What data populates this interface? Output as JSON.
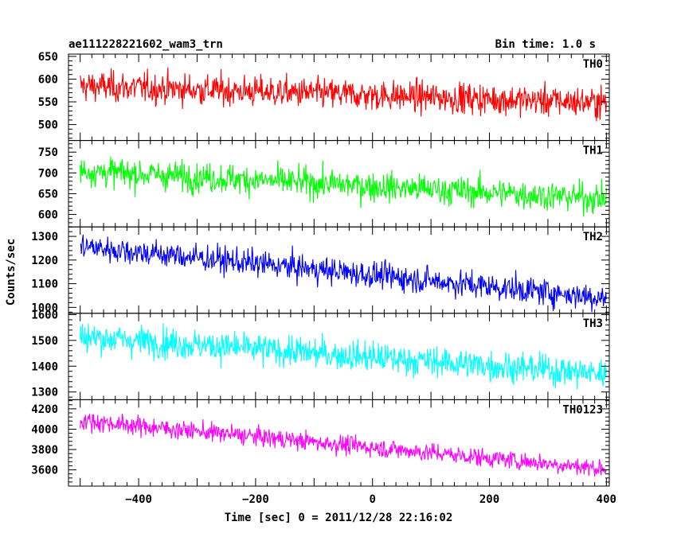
{
  "chart_data": {
    "type": "line",
    "title": "ae111228221602_wam3_trn",
    "subtitle": "Bin time: 1.0 s",
    "xlabel": "Time [sec] 0 = 2011/12/28 22:16:02",
    "ylabel": "Counts/sec",
    "xlim": [
      -520,
      405
    ],
    "x_ticks": [
      -400,
      -200,
      0,
      200,
      400
    ],
    "x_tick_labels": [
      "−400",
      "−200",
      "0",
      "200",
      "400"
    ],
    "x_start": -500,
    "x_end": 400,
    "bin_time": 1.0,
    "grid": false,
    "panels": [
      {
        "name": "TH0",
        "color": "#ff0000",
        "ylim": [
          465,
          655
        ],
        "y_ticks": [
          500,
          550,
          600,
          650
        ],
        "y_tick_labels": [
          "500",
          "550",
          "600",
          "650"
        ],
        "trend_start": 585,
        "trend_end": 548,
        "noise": 24,
        "clip": [
          470,
          652
        ]
      },
      {
        "name": "TH1",
        "color": "#00ff00",
        "ylim": [
          570,
          778
        ],
        "y_ticks": [
          600,
          650,
          700,
          750
        ],
        "y_tick_labels": [
          "600",
          "650",
          "700",
          "750"
        ],
        "trend_start": 705,
        "trend_end": 638,
        "noise": 25,
        "clip": [
          575,
          776
        ]
      },
      {
        "name": "TH2",
        "color": "#0000ff",
        "ylim": [
          975,
          1340
        ],
        "y_ticks": [
          1000,
          1100,
          1200,
          1300
        ],
        "y_tick_labels": [
          "1000",
          "1100",
          "1200",
          "1300"
        ],
        "trend_start": 1258,
        "trend_end": 1040,
        "noise": 40,
        "clip": [
          978,
          1338
        ]
      },
      {
        "name": "TH3",
        "color": "#00ffff",
        "ylim": [
          1270,
          1605
        ],
        "y_ticks": [
          1300,
          1400,
          1500,
          1600
        ],
        "y_tick_labels": [
          "1300",
          "1400",
          "1500",
          "1600"
        ],
        "trend_start": 1515,
        "trend_end": 1370,
        "noise": 42,
        "clip": [
          1272,
          1603
        ]
      },
      {
        "name": "TH0123",
        "color": "#ff00ff",
        "ylim": [
          3440,
          4290
        ],
        "y_ticks": [
          3600,
          3800,
          4000,
          4200
        ],
        "y_tick_labels": [
          "3600",
          "3800",
          "4000",
          "4200"
        ],
        "trend_start": 4085,
        "trend_end": 3610,
        "noise": 65,
        "clip": [
          3445,
          4285
        ]
      }
    ]
  }
}
